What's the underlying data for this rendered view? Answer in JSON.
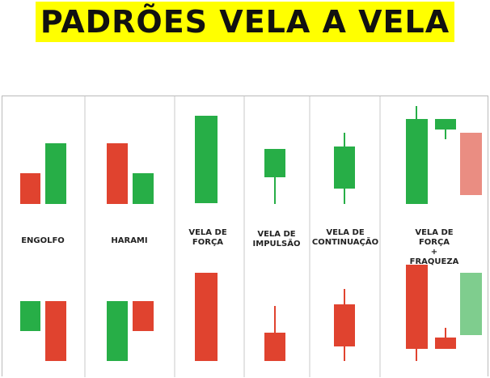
{
  "title": "PADRÕES VELA A VELA",
  "colors": {
    "green": "#27ae47",
    "red": "#e0432f",
    "light_red": "#ea8d82",
    "light_green": "#7fcd8e",
    "title_bg": "#ffff00",
    "divider": "#c8c8c8"
  },
  "patterns": [
    {
      "label": "ENGOLFO"
    },
    {
      "label": "HARAMI"
    },
    {
      "label": "VELA DE\nFORÇA"
    },
    {
      "label": "VELA DE\nIMPULSÃO"
    },
    {
      "label": "VELA DE\nCONTINUAÇÃO"
    },
    {
      "label": "VELA DE FORÇA\n+ FRAQUEZA"
    }
  ]
}
